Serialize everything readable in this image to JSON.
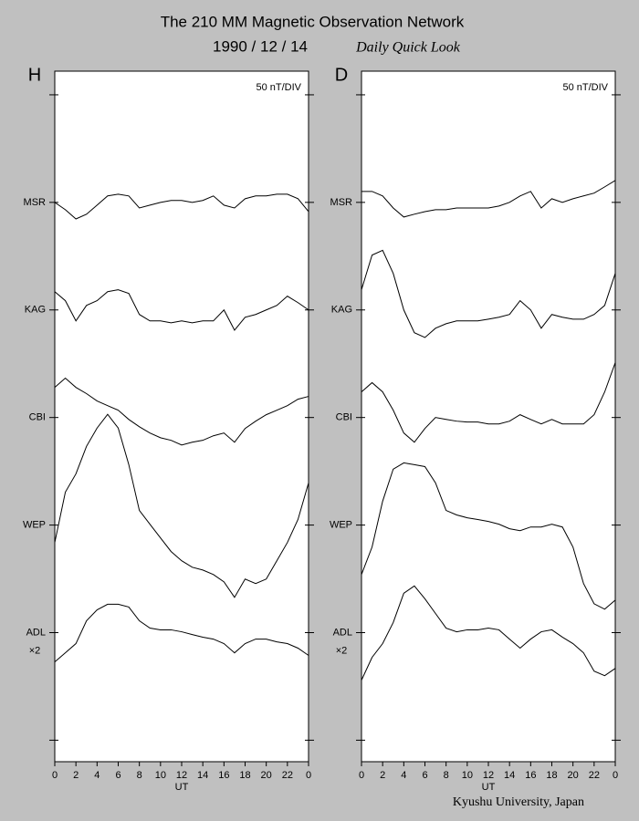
{
  "title": "The 210 MM Magnetic Observation Network",
  "date": "1990 / 12 / 14",
  "subtitle": "Daily Quick Look",
  "footer": "Kyushu University, Japan",
  "chart_data": [
    {
      "type": "line",
      "panel_label": "H",
      "unit_label": "50 nT/DIV",
      "x_label": "UT",
      "scale_note": "×2",
      "color": "#000000",
      "xlim": [
        0,
        24
      ],
      "xticks": [
        0,
        2,
        4,
        6,
        8,
        10,
        12,
        14,
        16,
        18,
        20,
        22,
        {
          "value": 24,
          "label": "0"
        }
      ],
      "ylim": [
        -60,
        261
      ],
      "yticks": [
        -50,
        {
          "value": 0,
          "label": "ADL"
        },
        {
          "value": 50,
          "label": "WEP"
        },
        {
          "value": 100,
          "label": "CBI"
        },
        {
          "value": 150,
          "label": "KAG"
        },
        {
          "value": 200,
          "label": "MSR"
        },
        250
      ],
      "x": [
        0,
        1,
        2,
        3,
        4,
        5,
        6,
        7,
        8,
        9,
        10,
        11,
        12,
        13,
        14,
        15,
        16,
        17,
        18,
        19,
        20,
        21,
        22,
        23,
        24
      ],
      "series": [
        {
          "values": [
            200,
            196.6,
            192.3,
            194.5,
            198.7,
            203,
            203.8,
            203,
            197.4,
            198.7,
            200,
            200.9,
            200.9,
            200,
            200.9,
            203,
            198.7,
            197.4,
            201.7,
            203,
            203,
            203.8,
            203.8,
            201.7,
            195.7
          ]
        },
        {
          "values": [
            158.5,
            154.3,
            144.9,
            152.1,
            154.3,
            158.5,
            159.4,
            157.7,
            147.9,
            144.9,
            144.9,
            144,
            144.9,
            144,
            144.9,
            144.9,
            150,
            140.6,
            146.6,
            147.9,
            150,
            152.1,
            156.4,
            153.4,
            150
          ]
        },
        {
          "values": [
            114,
            118.3,
            114,
            111.1,
            107.7,
            105.5,
            103.4,
            99.1,
            95.7,
            92.8,
            90.6,
            89.4,
            87.2,
            88.5,
            89.4,
            91.5,
            92.8,
            88.5,
            94.9,
            98.3,
            101.3,
            103.4,
            105.5,
            108.5,
            109.8
          ]
        },
        {
          "values": [
            41.9,
            65.3,
            73.8,
            86.6,
            95.1,
            101.5,
            95.1,
            78.1,
            56.8,
            50.4,
            44,
            37.7,
            33.4,
            30.4,
            29.1,
            27,
            23.6,
            16.4,
            24.9,
            22.8,
            24.9,
            33.4,
            41.9,
            52.6,
            69.6
          ]
        },
        {
          "values": [
            -13.6,
            -9.4,
            -5.1,
            5.5,
            10.6,
            13.2,
            13.2,
            11.9,
            5.5,
            2.1,
            1.3,
            1.3,
            0.4,
            -0.9,
            -2.1,
            -3,
            -5.1,
            -9.4,
            -5.1,
            -3,
            -3,
            -4.3,
            -5.1,
            -7.2,
            -10.6
          ]
        }
      ]
    },
    {
      "type": "line",
      "panel_label": "D",
      "unit_label": "50 nT/DIV",
      "x_label": "UT",
      "scale_note": "×2",
      "color": "#000000",
      "xlim": [
        0,
        24
      ],
      "xticks": [
        0,
        2,
        4,
        6,
        8,
        10,
        12,
        14,
        16,
        18,
        20,
        22,
        {
          "value": 24,
          "label": "0"
        }
      ],
      "ylim": [
        -60,
        261
      ],
      "yticks": [
        -50,
        {
          "value": 0,
          "label": "ADL"
        },
        {
          "value": 50,
          "label": "WEP"
        },
        {
          "value": 100,
          "label": "CBI"
        },
        {
          "value": 150,
          "label": "KAG"
        },
        {
          "value": 200,
          "label": "MSR"
        },
        250
      ],
      "x": [
        0,
        1,
        2,
        3,
        4,
        5,
        6,
        7,
        8,
        9,
        10,
        11,
        12,
        13,
        14,
        15,
        16,
        17,
        18,
        19,
        20,
        21,
        22,
        23,
        24
      ],
      "series": [
        {
          "values": [
            205.1,
            205.1,
            203,
            197.4,
            193.2,
            194.5,
            195.7,
            196.6,
            196.6,
            197.4,
            197.4,
            197.4,
            197.4,
            198.3,
            200,
            203,
            205.1,
            197.4,
            201.7,
            200,
            201.7,
            203,
            204.3,
            207.2,
            210.2
          ]
        },
        {
          "values": [
            159.4,
            175.5,
            177.7,
            167,
            150,
            139.4,
            137.2,
            141.5,
            143.6,
            144.9,
            144.9,
            144.9,
            145.7,
            146.6,
            147.9,
            154.3,
            150,
            141.5,
            147.9,
            146.6,
            145.7,
            145.7,
            147.9,
            152.1,
            167
          ]
        },
        {
          "values": [
            111.9,
            116.2,
            111.9,
            103.4,
            92.8,
            88.5,
            94.9,
            100,
            99.1,
            98.3,
            97.9,
            97.9,
            97,
            97,
            98.3,
            101.3,
            99.1,
            97,
            99.1,
            97,
            97,
            97,
            101.3,
            111.9,
            125.5
          ]
        },
        {
          "values": [
            27,
            39.8,
            61.1,
            76,
            78.9,
            78.1,
            77.2,
            69.6,
            56.8,
            54.7,
            53.4,
            52.6,
            51.7,
            50.4,
            48.3,
            47.4,
            49.1,
            49.1,
            50.4,
            49.1,
            39.8,
            22.8,
            13.4,
            10.9,
            15.1
          ]
        },
        {
          "values": [
            -22.1,
            -11.5,
            -5.1,
            4.7,
            18.3,
            21.7,
            15.7,
            8.9,
            2.1,
            0.4,
            1.3,
            1.3,
            2.1,
            1.3,
            -3,
            -7.2,
            -3,
            0.4,
            1.3,
            -2.1,
            -5.1,
            -9.4,
            -17.9,
            -20,
            -16.6
          ]
        }
      ]
    }
  ]
}
